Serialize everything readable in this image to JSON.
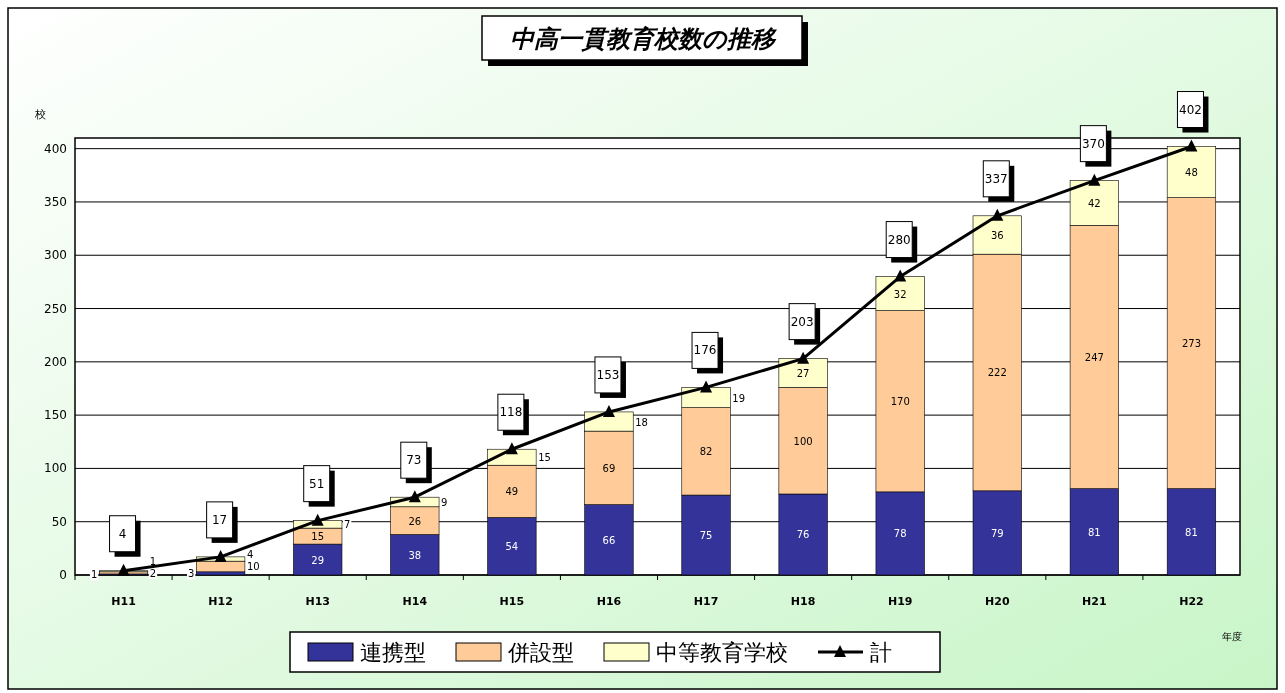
{
  "chart_data": {
    "type": "bar",
    "title": "中高一貫教育校数の推移",
    "ylabel": "校",
    "xlabel": "年度",
    "categories": [
      "H11",
      "H12",
      "H13",
      "H14",
      "H15",
      "H16",
      "H17",
      "H18",
      "H19",
      "H20",
      "H21",
      "H22"
    ],
    "stacked": true,
    "series": [
      {
        "name": "連携型",
        "color": "#333399",
        "values": [
          1,
          3,
          29,
          38,
          54,
          66,
          75,
          76,
          78,
          79,
          81,
          81
        ]
      },
      {
        "name": "併設型",
        "color": "#ffcc99",
        "values": [
          2,
          10,
          15,
          26,
          49,
          69,
          82,
          100,
          170,
          222,
          247,
          273
        ]
      },
      {
        "name": "中等教育学校",
        "color": "#ffffcc",
        "values": [
          1,
          4,
          7,
          9,
          15,
          18,
          19,
          27,
          32,
          36,
          42,
          48
        ]
      },
      {
        "name": "計",
        "type": "line",
        "color": "#000000",
        "marker": "triangle",
        "values": [
          4,
          17,
          51,
          73,
          118,
          153,
          176,
          203,
          280,
          337,
          370,
          402
        ]
      }
    ],
    "ylim": [
      0,
      410
    ],
    "yticks": [
      0,
      50,
      100,
      150,
      200,
      250,
      300,
      350,
      400
    ],
    "grid": "y",
    "legend": "bottom",
    "data_labels": true
  }
}
